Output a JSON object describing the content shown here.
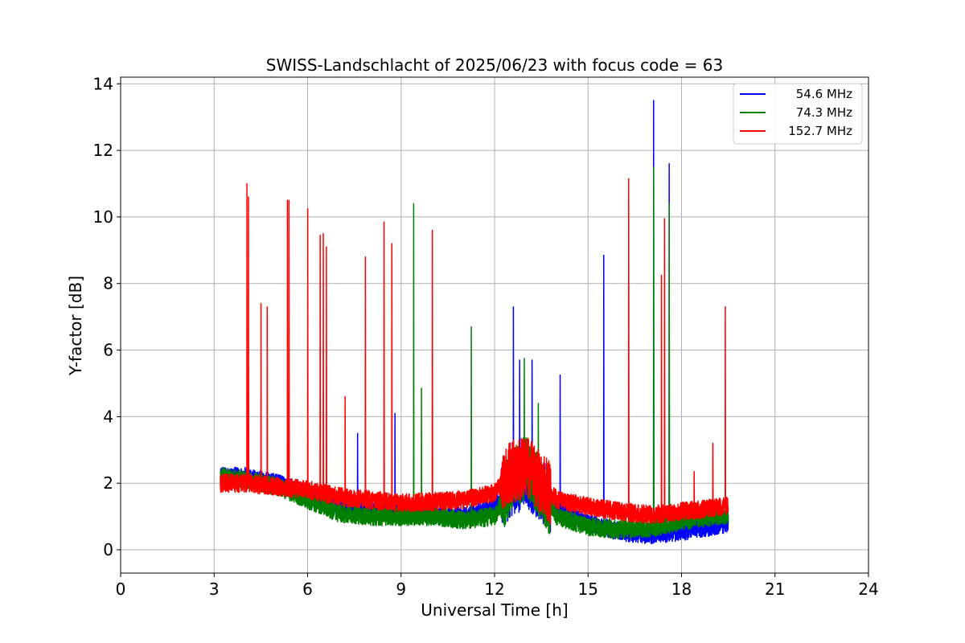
{
  "chart_data": {
    "type": "line",
    "title": "SWISS-Landschlacht of 2025/06/23 with focus code = 63",
    "xlabel": "Universal Time [h]",
    "ylabel": "Y-factor [dB]",
    "xlim": [
      0,
      24
    ],
    "ylim": [
      -0.7,
      14.2
    ],
    "xticks": [
      0,
      3,
      6,
      9,
      12,
      15,
      18,
      21,
      24
    ],
    "xtick_labels": [
      "0",
      "3",
      "6",
      "9",
      "12",
      "15",
      "18",
      "21",
      "24"
    ],
    "yticks": [
      0,
      2,
      4,
      6,
      8,
      10,
      12,
      14
    ],
    "ytick_labels": [
      "0",
      "2",
      "4",
      "6",
      "8",
      "10",
      "12",
      "14"
    ],
    "grid": true,
    "legend_position": "top-right",
    "series": [
      {
        "name": "54.6 MHz",
        "color": "#0000ff",
        "baseline": [
          [
            3.2,
            2.2
          ],
          [
            4,
            2.2
          ],
          [
            5,
            2.0
          ],
          [
            6,
            1.7
          ],
          [
            7,
            1.3
          ],
          [
            8,
            1.2
          ],
          [
            9,
            1.1
          ],
          [
            10,
            1.1
          ],
          [
            11,
            1.0
          ],
          [
            12,
            1.3
          ],
          [
            12.5,
            1.9
          ],
          [
            13,
            2.2
          ],
          [
            13.5,
            1.8
          ],
          [
            14,
            1.2
          ],
          [
            15,
            0.8
          ],
          [
            16,
            0.55
          ],
          [
            17,
            0.45
          ],
          [
            17.5,
            0.5
          ],
          [
            18,
            0.55
          ],
          [
            19,
            0.7
          ],
          [
            19.5,
            0.8
          ]
        ],
        "spikes": [
          [
            7.6,
            3.5
          ],
          [
            8.8,
            4.1
          ],
          [
            12.6,
            7.3
          ],
          [
            12.8,
            5.7
          ],
          [
            13.2,
            5.7
          ],
          [
            14.1,
            5.25
          ],
          [
            15.5,
            8.85
          ],
          [
            17.1,
            13.5
          ],
          [
            17.6,
            11.6
          ]
        ]
      },
      {
        "name": "74.3 MHz",
        "color": "#008000",
        "baseline": [
          [
            3.2,
            2.2
          ],
          [
            4,
            2.1
          ],
          [
            5,
            1.9
          ],
          [
            6,
            1.5
          ],
          [
            7,
            1.1
          ],
          [
            8,
            1.0
          ],
          [
            9,
            1.0
          ],
          [
            10,
            1.0
          ],
          [
            11,
            0.9
          ],
          [
            12,
            1.0
          ],
          [
            12.5,
            2.0
          ],
          [
            13,
            2.5
          ],
          [
            13.5,
            1.8
          ],
          [
            14,
            1.0
          ],
          [
            15,
            0.7
          ],
          [
            16,
            0.6
          ],
          [
            17,
            0.65
          ],
          [
            17.5,
            0.75
          ],
          [
            18,
            0.85
          ],
          [
            19,
            1.0
          ],
          [
            19.5,
            1.05
          ]
        ],
        "spikes": [
          [
            9.4,
            10.4
          ],
          [
            9.65,
            4.85
          ],
          [
            11.25,
            6.7
          ],
          [
            12.95,
            5.75
          ],
          [
            13.4,
            4.4
          ],
          [
            17.1,
            11.5
          ],
          [
            17.6,
            10.4
          ]
        ]
      },
      {
        "name": "152.7 MHz",
        "color": "#ff0000",
        "baseline": [
          [
            3.2,
            2.0
          ],
          [
            4,
            2.0
          ],
          [
            5,
            1.9
          ],
          [
            6,
            1.8
          ],
          [
            7,
            1.6
          ],
          [
            8,
            1.5
          ],
          [
            9,
            1.4
          ],
          [
            10,
            1.45
          ],
          [
            11,
            1.5
          ],
          [
            12,
            1.7
          ],
          [
            12.5,
            2.3
          ],
          [
            13,
            2.5
          ],
          [
            13.5,
            2.0
          ],
          [
            14,
            1.5
          ],
          [
            15,
            1.3
          ],
          [
            16,
            1.15
          ],
          [
            17,
            1.05
          ],
          [
            17.5,
            1.1
          ],
          [
            18,
            1.15
          ],
          [
            19,
            1.25
          ],
          [
            19.5,
            1.3
          ]
        ],
        "spikes": [
          [
            4.05,
            11.0
          ],
          [
            4.1,
            10.6
          ],
          [
            4.5,
            7.4
          ],
          [
            4.7,
            7.3
          ],
          [
            5.35,
            10.5
          ],
          [
            5.4,
            10.5
          ],
          [
            6.0,
            10.25
          ],
          [
            6.4,
            9.45
          ],
          [
            6.5,
            9.5
          ],
          [
            6.6,
            9.1
          ],
          [
            7.2,
            4.6
          ],
          [
            7.85,
            8.8
          ],
          [
            8.45,
            9.85
          ],
          [
            8.7,
            9.2
          ],
          [
            10.0,
            9.6
          ],
          [
            16.3,
            11.15
          ],
          [
            17.35,
            8.25
          ],
          [
            17.45,
            9.95
          ],
          [
            18.4,
            2.35
          ],
          [
            19.0,
            3.2
          ],
          [
            19.4,
            7.3
          ]
        ]
      }
    ]
  }
}
